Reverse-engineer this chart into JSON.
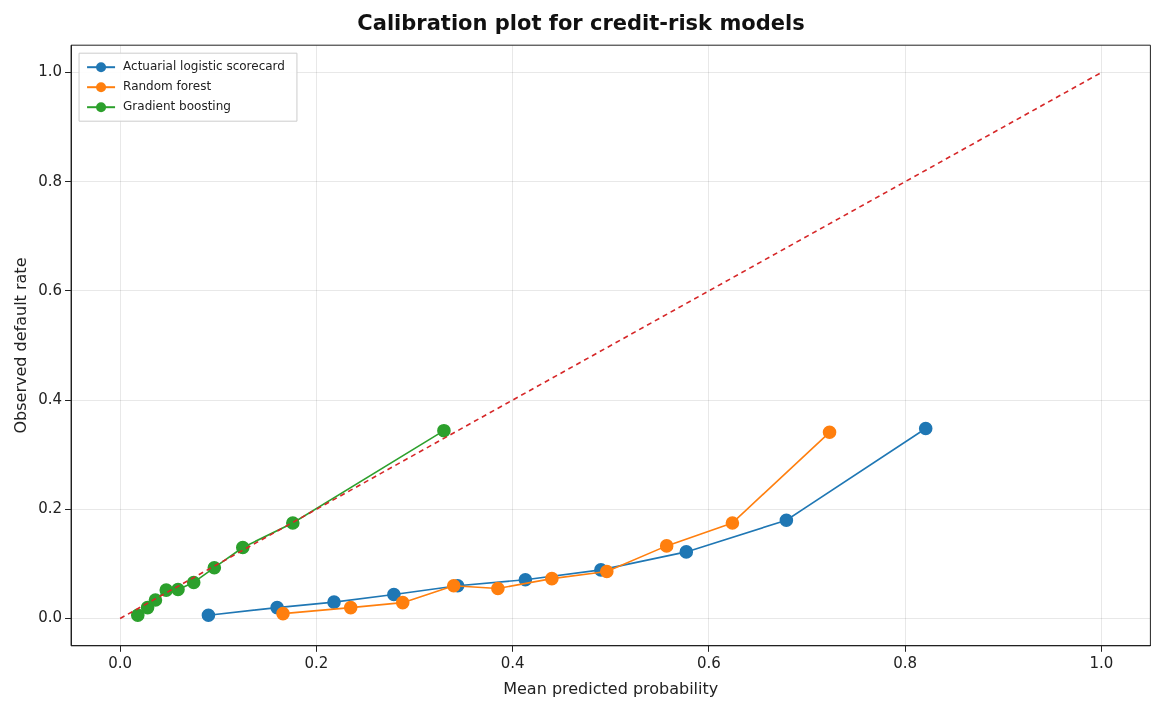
{
  "chart_data": {
    "type": "line",
    "title": "Calibration plot for credit-risk models",
    "xlabel": "Mean predicted probability",
    "ylabel": "Observed default rate",
    "xlim": [
      -0.05,
      1.05
    ],
    "ylim": [
      -0.05,
      1.05
    ],
    "xticks": [
      {
        "value": 0,
        "label": "0.0"
      },
      0.2,
      0.4,
      0.6,
      0.8,
      {
        "value": 1,
        "label": "1.0"
      }
    ],
    "yticks": [
      {
        "value": 0,
        "label": "0.0"
      },
      0.2,
      0.4,
      0.6,
      0.8,
      {
        "value": 1,
        "label": "1.0"
      }
    ],
    "grid": true,
    "legend": "top left",
    "marker": "circle",
    "series": [
      {
        "name": "Actuarial logistic scorecard",
        "color": "#1f77b4",
        "x": [
          0.09,
          0.16,
          0.218,
          0.279,
          0.344,
          0.413,
          0.49,
          0.577,
          0.679,
          0.821
        ],
        "values": [
          0.006,
          0.02,
          0.03,
          0.044,
          0.06,
          0.071,
          0.089,
          0.122,
          0.18,
          0.348
        ]
      },
      {
        "name": "Random forest",
        "color": "#ff7f0e",
        "x": [
          0.166,
          0.235,
          0.288,
          0.34,
          0.385,
          0.44,
          0.496,
          0.557,
          0.624,
          0.723
        ],
        "values": [
          0.009,
          0.02,
          0.029,
          0.06,
          0.055,
          0.073,
          0.086,
          0.133,
          0.175,
          0.341
        ]
      },
      {
        "name": "Gradient boosting",
        "color": "#2ca02c",
        "x": [
          0.018,
          0.028,
          0.036,
          0.047,
          0.059,
          0.075,
          0.096,
          0.125,
          0.176,
          0.33
        ],
        "values": [
          0.006,
          0.02,
          0.034,
          0.052,
          0.053,
          0.066,
          0.093,
          0.13,
          0.175,
          0.344
        ]
      },
      {
        "color": "#d62728",
        "line_style": "dashed",
        "marker": "none",
        "x": [
          0,
          1
        ],
        "values": [
          0,
          1
        ]
      }
    ]
  }
}
